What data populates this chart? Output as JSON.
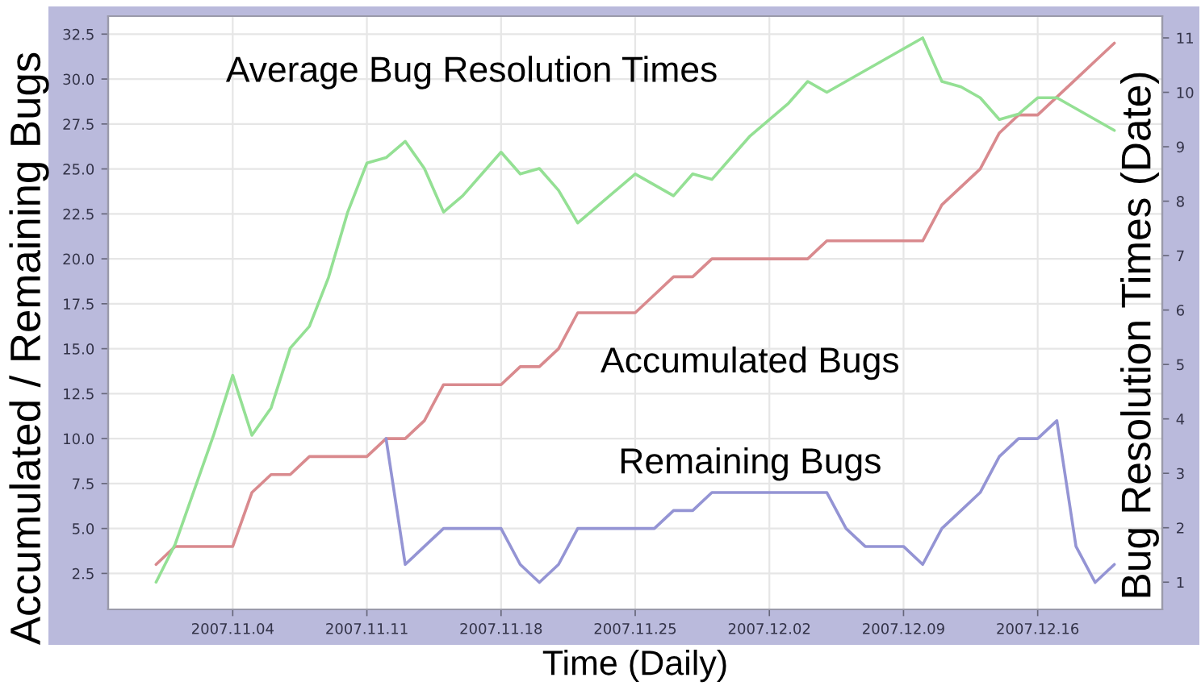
{
  "chart_data": {
    "type": "line",
    "xlabel": "Time (Daily)",
    "ylabel": "Accumulated / Remaining Bugs",
    "y2label": "Bug Resolution Times (Date)",
    "x": [
      "2007-10-31",
      "2007-11-01",
      "2007-11-02",
      "2007-11-03",
      "2007-11-04",
      "2007-11-05",
      "2007-11-06",
      "2007-11-07",
      "2007-11-08",
      "2007-11-09",
      "2007-11-10",
      "2007-11-11",
      "2007-11-12",
      "2007-11-13",
      "2007-11-14",
      "2007-11-15",
      "2007-11-16",
      "2007-11-17",
      "2007-11-18",
      "2007-11-19",
      "2007-11-20",
      "2007-11-21",
      "2007-11-22",
      "2007-11-23",
      "2007-11-24",
      "2007-11-25",
      "2007-11-26",
      "2007-11-27",
      "2007-11-28",
      "2007-11-29",
      "2007-11-30",
      "2007-12-01",
      "2007-12-02",
      "2007-12-03",
      "2007-12-04",
      "2007-12-05",
      "2007-12-06",
      "2007-12-07",
      "2007-12-08",
      "2007-12-09",
      "2007-12-10",
      "2007-12-11",
      "2007-12-12",
      "2007-12-13",
      "2007-12-14",
      "2007-12-15",
      "2007-12-16",
      "2007-12-17",
      "2007-12-18",
      "2007-12-19",
      "2007-12-20"
    ],
    "series": [
      {
        "name": "Accumulated Bugs",
        "color": "#d98a8e",
        "values": [
          3,
          4,
          4,
          4,
          4,
          7,
          8,
          8,
          9,
          9,
          9,
          9,
          10,
          10,
          11,
          13,
          13,
          13,
          13,
          14,
          14,
          15,
          17,
          17,
          17,
          17,
          18,
          19,
          19,
          20,
          20,
          20,
          20,
          20,
          20,
          21,
          21,
          21,
          21,
          21,
          21,
          23,
          24,
          25,
          27,
          28,
          28,
          29,
          30,
          31,
          32
        ]
      },
      {
        "name": "Remaining Bugs",
        "color": "#9494d4",
        "values": [
          null,
          null,
          null,
          null,
          null,
          null,
          null,
          null,
          null,
          null,
          null,
          null,
          10,
          3,
          4,
          5,
          5,
          5,
          5,
          3,
          2,
          3,
          5,
          5,
          5,
          5,
          5,
          6,
          6,
          7,
          7,
          7,
          7,
          7,
          7,
          7,
          5,
          4,
          4,
          4,
          3,
          5,
          6,
          7,
          9,
          10,
          10,
          11,
          4,
          2,
          3
        ]
      },
      {
        "name": "Average Bug Resolution Times",
        "color": "#94e094",
        "axis": "y2",
        "values": [
          1.0,
          1.7,
          2.7,
          3.7,
          4.8,
          3.7,
          4.2,
          5.3,
          5.7,
          6.6,
          7.8,
          8.7,
          8.8,
          9.1,
          8.6,
          7.8,
          8.1,
          8.5,
          8.9,
          8.5,
          8.6,
          8.2,
          7.6,
          7.9,
          8.2,
          8.5,
          8.3,
          8.1,
          8.5,
          8.4,
          8.8,
          9.2,
          9.5,
          9.8,
          10.2,
          10.0,
          10.2,
          10.4,
          10.6,
          10.8,
          11.0,
          10.2,
          10.1,
          9.9,
          9.5,
          9.6,
          9.9,
          9.9,
          9.7,
          9.5,
          9.3
        ]
      }
    ],
    "xlim": [
      "2007-10-28T12:00",
      "2007-12-22T12:00"
    ],
    "xticks": [
      {
        "value": "2007-11-04",
        "label": "2007.11.04"
      },
      {
        "value": "2007-11-11",
        "label": "2007.11.11"
      },
      {
        "value": "2007-11-18",
        "label": "2007.11.18"
      },
      {
        "value": "2007-11-25",
        "label": "2007.11.25"
      },
      {
        "value": "2007-12-02",
        "label": "2007.12.02"
      },
      {
        "value": "2007-12-09",
        "label": "2007.12.09"
      },
      {
        "value": "2007-12-16",
        "label": "2007.12.16"
      }
    ],
    "ylim": [
      0.5,
      33.5
    ],
    "yticks": [
      2.5,
      {
        "value": 5,
        "label": "5.0"
      },
      7.5,
      {
        "value": 10,
        "label": "10.0"
      },
      12.5,
      {
        "value": 15,
        "label": "15.0"
      },
      17.5,
      {
        "value": 20,
        "label": "20.0"
      },
      22.5,
      {
        "value": 25,
        "label": "25.0"
      },
      27.5,
      {
        "value": 30,
        "label": "30.0"
      },
      32.5
    ],
    "y2lim": [
      0.5,
      11.4
    ],
    "y2ticks": [
      1,
      2,
      3,
      4,
      5,
      6,
      7,
      8,
      9,
      10,
      11
    ],
    "grid": true
  }
}
